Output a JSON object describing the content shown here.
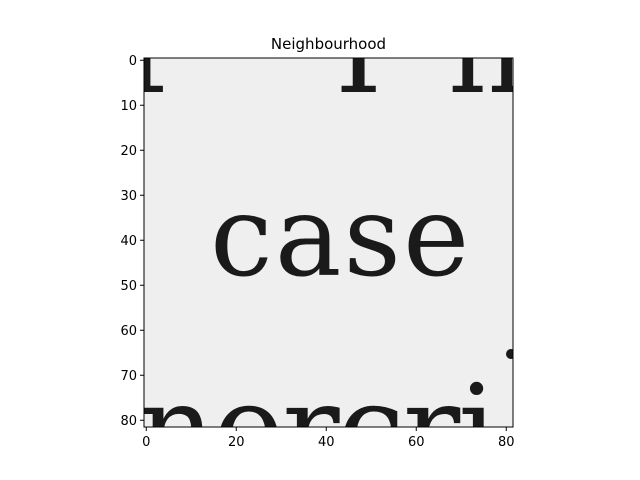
{
  "figure": {
    "title": "Neighbourhood"
  },
  "image": {
    "caption_word": "case",
    "partial_text_top": "r Th",
    "partial_text_bottom": "nercri",
    "background_color": "#efefef",
    "ink_color": "#1a1a1a",
    "colormap": "gray"
  },
  "axes": {
    "x": {
      "range": [
        -0.5,
        81.5
      ],
      "ticks": [
        0,
        20,
        40,
        60,
        80
      ],
      "tick_labels": [
        "0",
        "20",
        "40",
        "60",
        "80"
      ]
    },
    "y": {
      "range": [
        -0.5,
        81.5
      ],
      "inverted": true,
      "ticks": [
        0,
        10,
        20,
        30,
        40,
        50,
        60,
        70,
        80
      ],
      "tick_labels": [
        "0",
        "10",
        "20",
        "30",
        "40",
        "50",
        "60",
        "70",
        "80"
      ]
    }
  }
}
